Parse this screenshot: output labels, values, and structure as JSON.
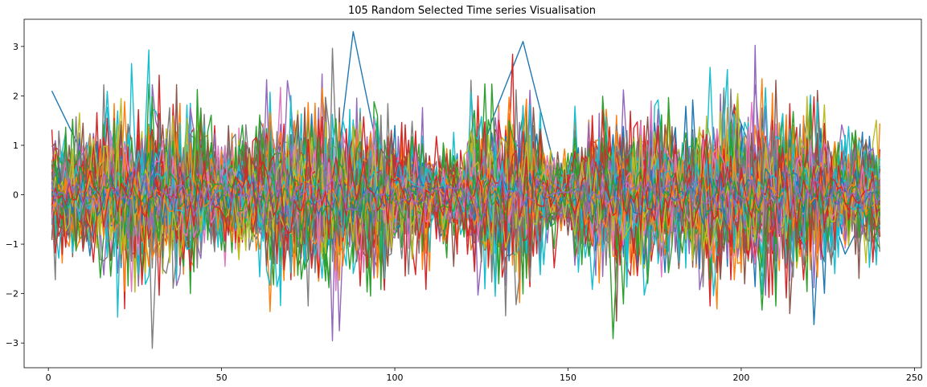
{
  "chart_data": {
    "type": "line",
    "title": "105 Random Selected Time series Visualisation",
    "xlabel": "",
    "ylabel": "",
    "xlim": [
      -7,
      252
    ],
    "ylim": [
      -3.5,
      3.55
    ],
    "x_ticks": [
      0,
      50,
      100,
      150,
      200,
      250
    ],
    "y_ticks": [
      -3,
      -2,
      -1,
      0,
      1,
      2,
      3
    ],
    "x_tick_labels": [
      "0",
      "50",
      "100",
      "150",
      "200",
      "250"
    ],
    "y_tick_labels": [
      "−3",
      "−2",
      "−1",
      "0",
      "1",
      "2",
      "3"
    ],
    "grid": false,
    "legend": "none",
    "n_series": 105,
    "x_range": [
      1,
      240
    ],
    "palette": [
      "#1f77b4",
      "#ff7f0e",
      "#2ca02c",
      "#d62728",
      "#9467bd",
      "#8c564b",
      "#e377c2",
      "#7f7f7f",
      "#bcbd22",
      "#17becf"
    ],
    "series_sample": [
      {
        "x": [
          1,
          10,
          20,
          30,
          40,
          50,
          60,
          70,
          80,
          88,
          100,
          110,
          120,
          128,
          137,
          150,
          160,
          170,
          180,
          190,
          198,
          210,
          220,
          230,
          240
        ],
        "values": [
          2.1,
          0.8,
          -0.6,
          1.2,
          -1.1,
          0.4,
          -0.9,
          0.9,
          -1.4,
          3.3,
          -0.8,
          0.3,
          -0.4,
          1.5,
          3.1,
          -0.5,
          0.7,
          -0.6,
          0.5,
          -1.1,
          1.8,
          -0.4,
          0.9,
          -1.2,
          0.2
        ]
      }
    ]
  }
}
